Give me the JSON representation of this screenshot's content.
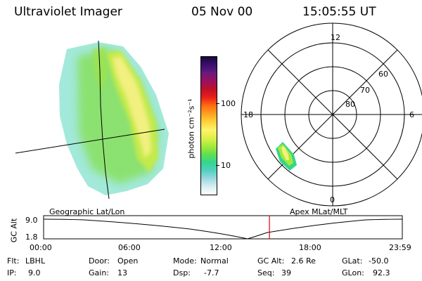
{
  "header": {
    "title": "Ultraviolet Imager",
    "date": "05 Nov 00",
    "time": "15:05:55 UT"
  },
  "colorbar": {
    "label": "photon cm⁻²s⁻¹",
    "ticks": [
      "100",
      "10"
    ],
    "colors": [
      "#ffffff",
      "#d7eef0",
      "#9ad8e0",
      "#4fd1c0",
      "#34d68c",
      "#62e04a",
      "#a6ea3c",
      "#dff04a",
      "#fff46a",
      "#ffd23a",
      "#ffa020",
      "#ff6a10",
      "#e8201a",
      "#c0102a",
      "#9a1060",
      "#6a1a7a",
      "#3a1070",
      "#18083a"
    ]
  },
  "left_image": {
    "caption": "Geographic Lat/Lon"
  },
  "polar_plot": {
    "caption": "Apex MLat/MLT",
    "mlt_labels": {
      "top": "12",
      "left": "18",
      "right": "6",
      "bottom": "0"
    },
    "lat_labels": [
      "60",
      "70",
      "80"
    ]
  },
  "altitude_plot": {
    "ylabel": "GC Alt",
    "yticks": [
      "9.0",
      "1.8"
    ],
    "xticks": [
      "00:00",
      "06:00",
      "12:00",
      "18:00",
      "23:59"
    ],
    "current_marker_time": "15:05:55"
  },
  "status": {
    "flt_label": "Flt:",
    "flt_value": "LBHL",
    "ip_label": "IP:",
    "ip_value": "9.0",
    "door_label": "Door:",
    "door_value": "Open",
    "gain_label": "Gain:",
    "gain_value": "13",
    "mode_label": "Mode:",
    "mode_value": "Normal",
    "dsp_label": "Dsp:",
    "dsp_value": "-7.7",
    "gcalt_label": "GC Alt:",
    "gcalt_value": "2.6 Re",
    "seq_label": "Seq:",
    "seq_value": "39",
    "glat_label": "GLat:",
    "glat_value": "-50.0",
    "glon_label": "GLon:",
    "glon_value": "92.3"
  }
}
